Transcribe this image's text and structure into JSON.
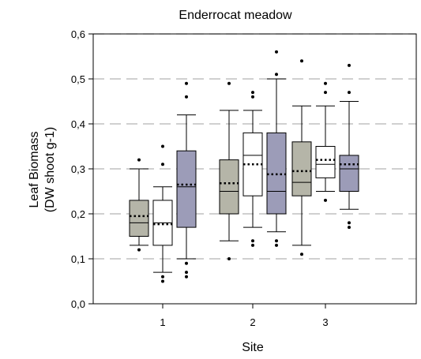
{
  "chart_data": {
    "type": "box",
    "title": "Enderrocat meadow",
    "xlabel": "Site",
    "ylabel_line1": "Leaf Biomass",
    "ylabel_line2": "(DW shoot g-1)",
    "ylim": [
      0,
      0.6
    ],
    "yticks": [
      "0,0",
      "0,1",
      "0,2",
      "0,3",
      "0,4",
      "0,5",
      "0,6"
    ],
    "ytick_values": [
      0,
      0.1,
      0.2,
      0.3,
      0.4,
      0.5,
      0.6
    ],
    "categories": [
      "1",
      "2",
      "3"
    ],
    "grid": "horizontal dashed",
    "series_colors": [
      "#b5b5a8",
      "#ffffff",
      "#9c9cb8"
    ],
    "series": [
      {
        "boxes": [
          {
            "site": "1",
            "whisker_low": 0.13,
            "q1": 0.15,
            "median": 0.18,
            "q3": 0.23,
            "whisker_high": 0.3,
            "mean": 0.195,
            "outliers": [
              0.12,
              0.32
            ]
          },
          {
            "site": "2",
            "whisker_low": 0.14,
            "q1": 0.2,
            "median": 0.25,
            "q3": 0.32,
            "whisker_high": 0.43,
            "mean": 0.268,
            "outliers": [
              0.1,
              0.49
            ]
          },
          {
            "site": "3",
            "whisker_low": 0.13,
            "q1": 0.24,
            "median": 0.27,
            "q3": 0.36,
            "whisker_high": 0.44,
            "mean": 0.295,
            "outliers": [
              0.11,
              0.54
            ]
          }
        ]
      },
      {
        "boxes": [
          {
            "site": "1",
            "whisker_low": 0.07,
            "q1": 0.13,
            "median": 0.18,
            "q3": 0.23,
            "whisker_high": 0.26,
            "mean": 0.177,
            "outliers": [
              0.05,
              0.06,
              0.31,
              0.35
            ]
          },
          {
            "site": "2",
            "whisker_low": 0.17,
            "q1": 0.24,
            "median": 0.33,
            "q3": 0.38,
            "whisker_high": 0.43,
            "mean": 0.31,
            "outliers": [
              0.13,
              0.14,
              0.46,
              0.47
            ]
          },
          {
            "site": "3",
            "whisker_low": 0.25,
            "q1": 0.28,
            "median": 0.31,
            "q3": 0.35,
            "whisker_high": 0.44,
            "mean": 0.32,
            "outliers": [
              0.23,
              0.47,
              0.49
            ]
          }
        ]
      },
      {
        "boxes": [
          {
            "site": "1",
            "whisker_low": 0.1,
            "q1": 0.17,
            "median": 0.26,
            "q3": 0.34,
            "whisker_high": 0.42,
            "mean": 0.265,
            "outliers": [
              0.06,
              0.07,
              0.09,
              0.46,
              0.49
            ]
          },
          {
            "site": "2",
            "whisker_low": 0.16,
            "q1": 0.2,
            "median": 0.25,
            "q3": 0.38,
            "whisker_high": 0.5,
            "mean": 0.288,
            "outliers": [
              0.13,
              0.14,
              0.51,
              0.56
            ]
          },
          {
            "site": "3",
            "whisker_low": 0.21,
            "q1": 0.25,
            "median": 0.3,
            "q3": 0.33,
            "whisker_high": 0.45,
            "mean": 0.31,
            "outliers": [
              0.17,
              0.18,
              0.47,
              0.53
            ]
          }
        ]
      }
    ]
  }
}
